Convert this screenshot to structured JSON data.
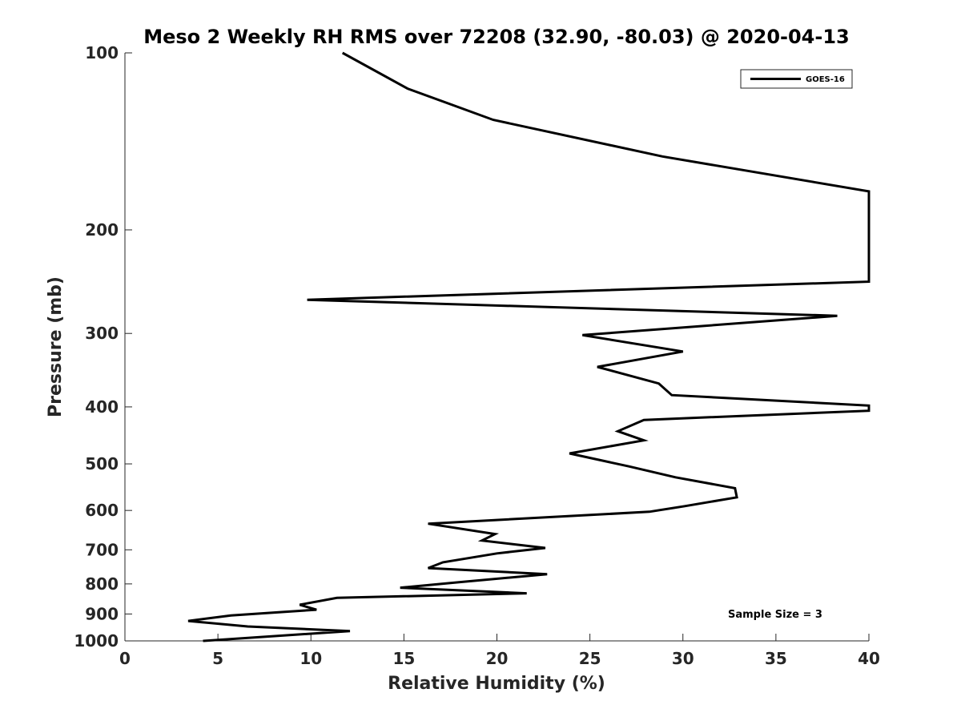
{
  "chart_data": {
    "type": "line",
    "title": "Meso 2 Weekly RH RMS over 72208 (32.90, -80.03) @ 2020-04-13",
    "xlabel": "Relative Humidity (%)",
    "ylabel": "Pressure (mb)",
    "xlim": [
      0,
      40
    ],
    "ylim": [
      1000,
      100
    ],
    "yscale": "log",
    "x_ticks": [
      0,
      5,
      10,
      15,
      20,
      25,
      30,
      35,
      40
    ],
    "x_tick_labels": [
      "0",
      "5",
      "10",
      "15",
      "20",
      "25",
      "30",
      "35",
      "40"
    ],
    "y_ticks": [
      100,
      200,
      300,
      400,
      500,
      600,
      700,
      800,
      900,
      1000
    ],
    "y_tick_labels": [
      "100",
      "200",
      "300",
      "400",
      "500",
      "600",
      "700",
      "800",
      "900",
      "1000"
    ],
    "grid": false,
    "legend_position": "top-right",
    "series": [
      {
        "name": "GOES-16",
        "color": "#000000",
        "points": [
          [
            11.7,
            100
          ],
          [
            15.2,
            115
          ],
          [
            19.8,
            130
          ],
          [
            28.9,
            150
          ],
          [
            40.0,
            172
          ],
          [
            40.0,
            245
          ],
          [
            9.8,
            263
          ],
          [
            38.3,
            280
          ],
          [
            24.6,
            302
          ],
          [
            30.0,
            322
          ],
          [
            25.4,
            342
          ],
          [
            28.7,
            365
          ],
          [
            29.4,
            382
          ],
          [
            40.0,
            398
          ],
          [
            40.0,
            406
          ],
          [
            27.9,
            421
          ],
          [
            26.5,
            440
          ],
          [
            27.9,
            456
          ],
          [
            23.9,
            480
          ],
          [
            27.1,
            505
          ],
          [
            29.6,
            527
          ],
          [
            32.8,
            550
          ],
          [
            32.9,
            570
          ],
          [
            30.1,
            590
          ],
          [
            28.2,
            603
          ],
          [
            16.3,
            632
          ],
          [
            19.9,
            658
          ],
          [
            19.2,
            675
          ],
          [
            22.6,
            695
          ],
          [
            20.0,
            710
          ],
          [
            17.1,
            735
          ],
          [
            16.3,
            752
          ],
          [
            22.7,
            770
          ],
          [
            17.9,
            795
          ],
          [
            14.8,
            812
          ],
          [
            21.6,
            830
          ],
          [
            11.4,
            845
          ],
          [
            9.4,
            868
          ],
          [
            10.3,
            885
          ],
          [
            5.7,
            905
          ],
          [
            3.4,
            925
          ],
          [
            6.6,
            945
          ],
          [
            12.1,
            962
          ],
          [
            4.2,
            1000
          ]
        ]
      }
    ],
    "annotations": [
      {
        "text": "Sample Size = 3"
      }
    ]
  }
}
